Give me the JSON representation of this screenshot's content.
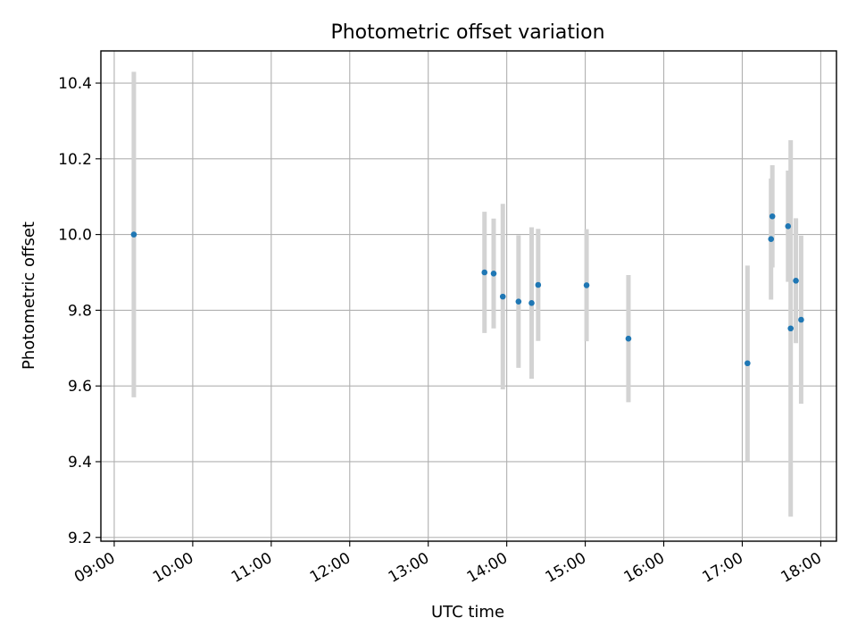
{
  "chart_data": {
    "type": "scatter",
    "title": "Photometric offset variation",
    "xlabel": "UTC time",
    "ylabel": "Photometric offset",
    "x_tick_labels": [
      "09:00",
      "10:00",
      "11:00",
      "12:00",
      "13:00",
      "14:00",
      "15:00",
      "16:00",
      "17:00",
      "18:00"
    ],
    "x_tick_hours": [
      9,
      10,
      11,
      12,
      13,
      14,
      15,
      16,
      17,
      18
    ],
    "y_ticks": [
      9.2,
      9.4,
      9.6,
      9.8,
      10.0,
      10.2,
      10.4
    ],
    "y_tick_labels": [
      "9.2",
      "9.4",
      "9.6",
      "9.8",
      "10.0",
      "10.2",
      "10.4"
    ],
    "xlim_hours": [
      8.83,
      18.2
    ],
    "ylim": [
      9.19,
      10.485
    ],
    "grid": true,
    "point_color": "#1f77b4",
    "errorbar_color": "#d3d3d3",
    "points": [
      {
        "x": "09:15",
        "y": 10.0,
        "err": 0.43
      },
      {
        "x": "13:43",
        "y": 9.9,
        "err": 0.16
      },
      {
        "x": "13:50",
        "y": 9.897,
        "err": 0.145
      },
      {
        "x": "13:57",
        "y": 9.836,
        "err": 0.245
      },
      {
        "x": "14:09",
        "y": 9.823,
        "err": 0.175
      },
      {
        "x": "14:19",
        "y": 9.819,
        "err": 0.2
      },
      {
        "x": "14:24",
        "y": 9.867,
        "err": 0.148
      },
      {
        "x": "15:01",
        "y": 9.866,
        "err": 0.148
      },
      {
        "x": "15:33",
        "y": 9.725,
        "err": 0.168
      },
      {
        "x": "17:04",
        "y": 9.66,
        "err": 0.258
      },
      {
        "x": "17:22",
        "y": 9.988,
        "err": 0.16
      },
      {
        "x": "17:23",
        "y": 10.048,
        "err": 0.135
      },
      {
        "x": "17:35",
        "y": 10.022,
        "err": 0.147
      },
      {
        "x": "17:37",
        "y": 9.752,
        "err": 0.497
      },
      {
        "x": "17:41",
        "y": 9.878,
        "err": 0.165
      },
      {
        "x": "17:45",
        "y": 9.775,
        "err": 0.222
      }
    ]
  }
}
